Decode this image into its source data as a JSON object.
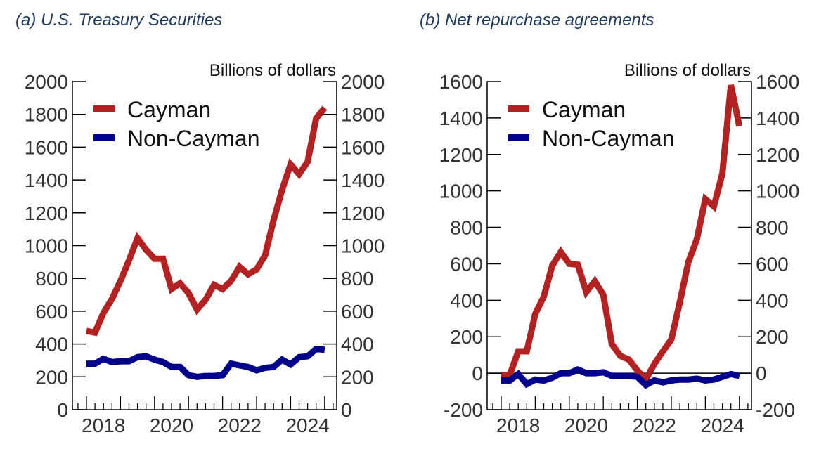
{
  "chart_data": [
    {
      "type": "line",
      "title": "(a)  U.S. Treasury Securities",
      "unit_label": "Billions of dollars",
      "x": [
        "2018Q1",
        "2018Q2",
        "2018Q3",
        "2018Q4",
        "2019Q1",
        "2019Q2",
        "2019Q3",
        "2019Q4",
        "2020Q1",
        "2020Q2",
        "2020Q3",
        "2020Q4",
        "2021Q1",
        "2021Q2",
        "2021Q3",
        "2021Q4",
        "2022Q1",
        "2022Q2",
        "2022Q3",
        "2022Q4",
        "2023Q1",
        "2023Q2",
        "2023Q3",
        "2023Q4",
        "2024Q1",
        "2024Q2",
        "2024Q3",
        "2024Q4",
        "2025Q1"
      ],
      "xtick_labels": [
        "2018",
        "2020",
        "2022",
        "2024"
      ],
      "ylim": [
        0,
        2000
      ],
      "yticks": [
        0,
        200,
        400,
        600,
        800,
        1000,
        1200,
        1400,
        1600,
        1800,
        2000
      ],
      "grid": false,
      "legend": "top-left",
      "series": [
        {
          "name": "Cayman",
          "color": "#b22222",
          "values": [
            480,
            470,
            590,
            675,
            785,
            910,
            1045,
            975,
            920,
            920,
            735,
            770,
            710,
            610,
            670,
            760,
            735,
            785,
            870,
            825,
            855,
            940,
            1155,
            1340,
            1495,
            1435,
            1510,
            1775,
            1840
          ]
        },
        {
          "name": "Non-Cayman",
          "color": "#00008b",
          "values": [
            280,
            280,
            310,
            290,
            295,
            295,
            320,
            325,
            305,
            290,
            260,
            260,
            210,
            200,
            205,
            205,
            210,
            280,
            270,
            260,
            240,
            255,
            260,
            305,
            275,
            320,
            325,
            370,
            365
          ]
        }
      ]
    },
    {
      "type": "line",
      "title": "(b) Net repurchase agreements",
      "unit_label": "Billions of dollars",
      "x": [
        "2018Q1",
        "2018Q2",
        "2018Q3",
        "2018Q4",
        "2019Q1",
        "2019Q2",
        "2019Q3",
        "2019Q4",
        "2020Q1",
        "2020Q2",
        "2020Q3",
        "2020Q4",
        "2021Q1",
        "2021Q2",
        "2021Q3",
        "2021Q4",
        "2022Q1",
        "2022Q2",
        "2022Q3",
        "2022Q4",
        "2023Q1",
        "2023Q2",
        "2023Q3",
        "2023Q4",
        "2024Q1",
        "2024Q2",
        "2024Q3",
        "2024Q4",
        "2025Q1"
      ],
      "xtick_labels": [
        "2018",
        "2020",
        "2022",
        "2024"
      ],
      "ylim": [
        -200,
        1600
      ],
      "yticks": [
        -200,
        0,
        200,
        400,
        600,
        800,
        1000,
        1200,
        1400,
        1600
      ],
      "grid": false,
      "zero_line": true,
      "legend": "top-left",
      "series": [
        {
          "name": "Cayman",
          "color": "#b22222",
          "values": [
            -10,
            -10,
            120,
            120,
            325,
            420,
            590,
            665,
            600,
            595,
            445,
            505,
            430,
            160,
            95,
            75,
            15,
            -35,
            50,
            120,
            185,
            390,
            610,
            735,
            955,
            915,
            1095,
            1580,
            1355
          ]
        },
        {
          "name": "Non-Cayman",
          "color": "#00008b",
          "values": [
            -40,
            -40,
            -5,
            -60,
            -35,
            -40,
            -25,
            0,
            0,
            20,
            0,
            0,
            5,
            -15,
            -15,
            -15,
            -20,
            -65,
            -40,
            -50,
            -40,
            -35,
            -35,
            -30,
            -40,
            -35,
            -20,
            -5,
            -15
          ]
        }
      ]
    }
  ],
  "colors": {
    "title": "#1f3a5c",
    "axis": "#000000",
    "tick_text": "#333333"
  }
}
